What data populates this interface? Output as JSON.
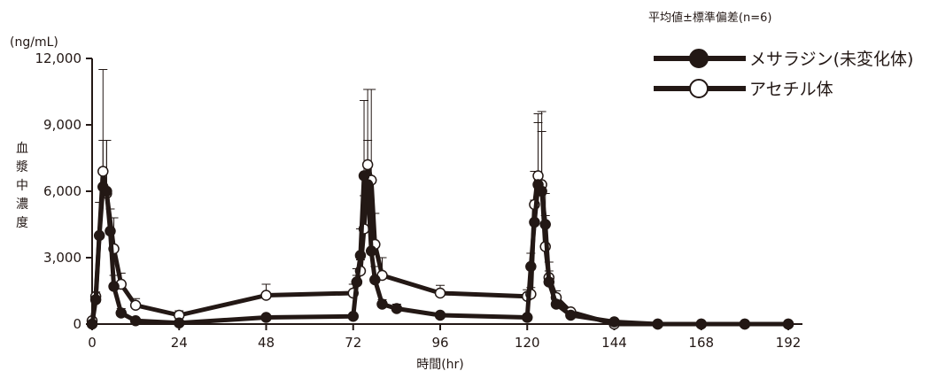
{
  "chart_data": {
    "type": "line",
    "note": "平均値±標準偏差(n=6)",
    "unit_label": "(ng/mL)",
    "ylabel": "血漿中濃度",
    "xlabel": "時間(hr)",
    "ylim": [
      0,
      12000
    ],
    "xlim": [
      0,
      192
    ],
    "y_ticks": [
      0,
      3000,
      6000,
      9000,
      12000
    ],
    "y_tick_labels": [
      "0",
      "3,000",
      "6,000",
      "9,000",
      "12,000"
    ],
    "x_ticks": [
      0,
      24,
      48,
      72,
      96,
      120,
      144,
      168,
      192
    ],
    "x_tick_labels": [
      "0",
      "24",
      "48",
      "72",
      "96",
      "120",
      "144",
      "168",
      "192"
    ],
    "grid": false,
    "legend_position": "top-right",
    "series": [
      {
        "name": "メサラジン(未変化体)",
        "marker": "filled-circle",
        "color": "#231815",
        "x": [
          0,
          1,
          2,
          3,
          4,
          5,
          6,
          8,
          12,
          24,
          48,
          72,
          73,
          74,
          75,
          76,
          77,
          78,
          80,
          84,
          96,
          120,
          121,
          122,
          123,
          124,
          125,
          126,
          128,
          132,
          144,
          156,
          168,
          180,
          192
        ],
        "y": [
          0,
          1100,
          4000,
          6200,
          6000,
          4200,
          1700,
          500,
          150,
          50,
          300,
          350,
          1900,
          3100,
          6700,
          6300,
          3300,
          2000,
          900,
          700,
          400,
          300,
          2600,
          4600,
          6300,
          6000,
          4500,
          1900,
          900,
          400,
          100,
          0,
          0,
          0,
          0
        ],
        "err": [
          0,
          300,
          1500,
          2100,
          2300,
          1000,
          500,
          200,
          100,
          50,
          100,
          100,
          600,
          1200,
          3400,
          2000,
          1000,
          600,
          200,
          200,
          100,
          100,
          600,
          1000,
          2800,
          2700,
          1400,
          500,
          300,
          150,
          50,
          0,
          0,
          0,
          0
        ]
      },
      {
        "name": "アセチル体",
        "marker": "open-circle",
        "color": "#231815",
        "x": [
          0,
          1,
          3,
          4,
          6,
          8,
          12,
          24,
          48,
          72,
          73,
          74,
          75,
          76,
          77,
          78,
          80,
          96,
          120,
          121,
          122,
          123,
          124,
          125,
          126,
          128,
          132,
          144,
          156,
          168,
          180,
          192
        ],
        "y": [
          150,
          1250,
          6900,
          5900,
          3400,
          1800,
          850,
          400,
          1300,
          1400,
          1900,
          2400,
          4300,
          7200,
          6500,
          3600,
          2200,
          1400,
          1250,
          1350,
          5400,
          6700,
          6300,
          3500,
          2100,
          1200,
          550,
          0,
          0,
          0,
          0,
          0
        ],
        "err": [
          50,
          200,
          4600,
          2400,
          1400,
          500,
          300,
          200,
          500,
          400,
          300,
          500,
          1500,
          3400,
          4100,
          1400,
          800,
          350,
          300,
          300,
          1500,
          2800,
          3300,
          1400,
          700,
          300,
          100,
          0,
          0,
          0,
          0,
          0
        ]
      }
    ]
  }
}
